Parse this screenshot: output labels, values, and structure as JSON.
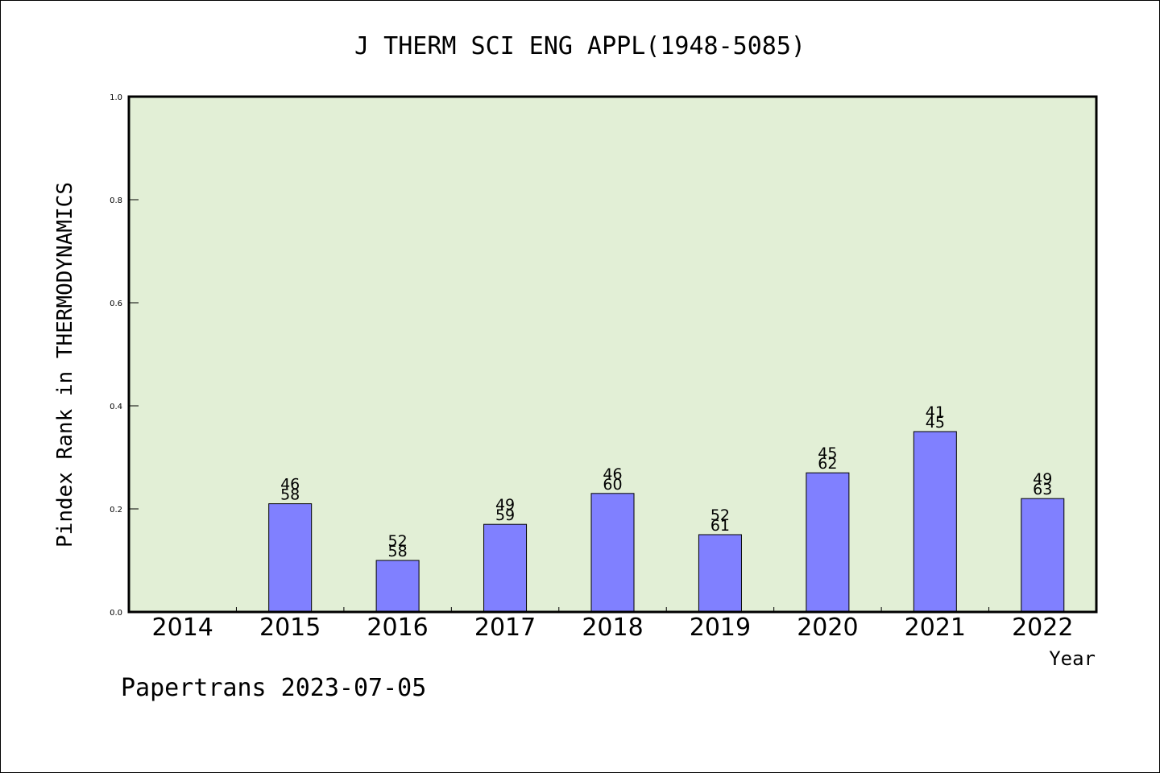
{
  "chart_data": {
    "type": "bar",
    "title": "J THERM SCI ENG APPL(1948-5085)",
    "xlabel": "Year",
    "ylabel": "Pindex Rank in THERMODYNAMICS",
    "ylim": [
      0,
      1.0
    ],
    "yticks": [
      "0.0",
      "0.2",
      "0.4",
      "0.6",
      "0.8",
      "1.0"
    ],
    "categories": [
      "2014",
      "2015",
      "2016",
      "2017",
      "2018",
      "2019",
      "2020",
      "2021",
      "2022"
    ],
    "values": [
      null,
      0.21,
      0.1,
      0.17,
      0.23,
      0.15,
      0.27,
      0.35,
      0.22
    ],
    "labels_top": [
      "",
      "46",
      "52",
      "49",
      "46",
      "52",
      "45",
      "41",
      "49"
    ],
    "labels_bottom": [
      "",
      "58",
      "58",
      "59",
      "60",
      "61",
      "62",
      "45",
      "63"
    ],
    "grid": false,
    "legend": "none",
    "colors": {
      "bar": "#8080ff",
      "plot_background": "#e2efd6",
      "axis": "#000000"
    }
  },
  "footer": "Papertrans 2023-07-05"
}
